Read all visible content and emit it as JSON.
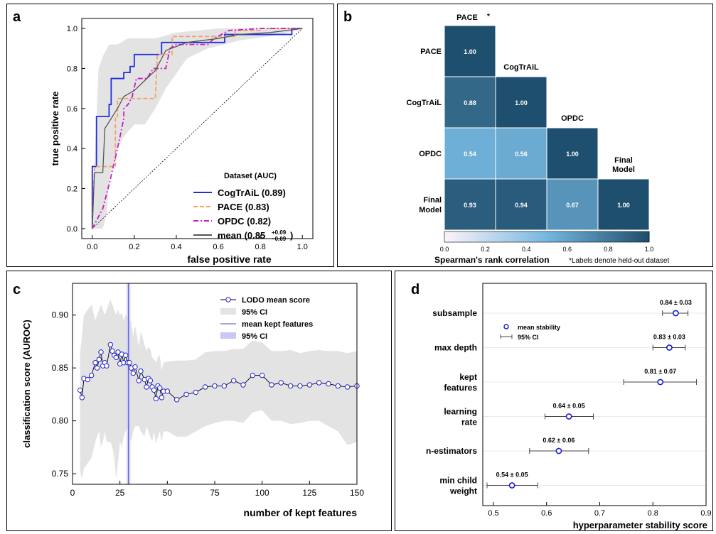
{
  "panel_a": {
    "letter": "a",
    "chart_data": {
      "type": "line",
      "xlabel": "false positive rate",
      "ylabel": "true positive rate",
      "xlim": [
        -0.05,
        1.05
      ],
      "ylim": [
        -0.05,
        1.05
      ],
      "xticks": [
        "0.0",
        "0.2",
        "0.4",
        "0.6",
        "0.8",
        "1.0"
      ],
      "yticks": [
        "0.0",
        "0.2",
        "0.4",
        "0.6",
        "0.8",
        "1.0"
      ],
      "legend_title": "Dataset (AUC)",
      "legend_position": "lower-right",
      "series": [
        {
          "name": "CogTrAiL (0.89)",
          "color": "#1f2fe0",
          "style": "solid",
          "points": [
            [
              0,
              0
            ],
            [
              0,
              0.31
            ],
            [
              0.02,
              0.31
            ],
            [
              0.02,
              0.56
            ],
            [
              0.08,
              0.56
            ],
            [
              0.08,
              0.62
            ],
            [
              0.09,
              0.62
            ],
            [
              0.09,
              0.75
            ],
            [
              0.15,
              0.75
            ],
            [
              0.15,
              0.78
            ],
            [
              0.18,
              0.78
            ],
            [
              0.18,
              0.81
            ],
            [
              0.2,
              0.81
            ],
            [
              0.2,
              0.87
            ],
            [
              0.33,
              0.87
            ],
            [
              0.33,
              0.93
            ],
            [
              0.63,
              0.93
            ],
            [
              0.63,
              0.97
            ],
            [
              0.95,
              0.97
            ],
            [
              0.95,
              1.0
            ],
            [
              1,
              1
            ]
          ]
        },
        {
          "name": "PACE (0.83)",
          "color": "#f5a06a",
          "style": "dashed",
          "points": [
            [
              0,
              0
            ],
            [
              0.01,
              0.31
            ],
            [
              0.11,
              0.31
            ],
            [
              0.11,
              0.56
            ],
            [
              0.12,
              0.56
            ],
            [
              0.12,
              0.65
            ],
            [
              0.3,
              0.65
            ],
            [
              0.31,
              0.87
            ],
            [
              0.38,
              0.87
            ],
            [
              0.38,
              0.96
            ],
            [
              0.68,
              0.96
            ],
            [
              0.68,
              0.99
            ],
            [
              0.8,
              0.99
            ],
            [
              0.8,
              1.0
            ],
            [
              1,
              1
            ]
          ]
        },
        {
          "name": "OPDC (0.82)",
          "color": "#c61cc6",
          "style": "dashdot",
          "points": [
            [
              0,
              0
            ],
            [
              0.05,
              0.1
            ],
            [
              0.08,
              0.22
            ],
            [
              0.12,
              0.4
            ],
            [
              0.15,
              0.55
            ],
            [
              0.15,
              0.6
            ],
            [
              0.17,
              0.62
            ],
            [
              0.19,
              0.66
            ],
            [
              0.21,
              0.75
            ],
            [
              0.26,
              0.75
            ],
            [
              0.29,
              0.8
            ],
            [
              0.35,
              0.8
            ],
            [
              0.37,
              0.9
            ],
            [
              0.4,
              0.92
            ],
            [
              0.55,
              0.92
            ],
            [
              0.58,
              0.95
            ],
            [
              0.65,
              0.99
            ],
            [
              0.8,
              1.0
            ],
            [
              1,
              1
            ]
          ]
        },
        {
          "name": "mean (0.85",
          "color": "#555555",
          "style": "solid",
          "points": [
            [
              0,
              0
            ],
            [
              0.01,
              0.28
            ],
            [
              0.05,
              0.28
            ],
            [
              0.06,
              0.5
            ],
            [
              0.09,
              0.55
            ],
            [
              0.12,
              0.6
            ],
            [
              0.15,
              0.66
            ],
            [
              0.2,
              0.69
            ],
            [
              0.25,
              0.74
            ],
            [
              0.3,
              0.79
            ],
            [
              0.35,
              0.89
            ],
            [
              0.45,
              0.93
            ],
            [
              0.6,
              0.95
            ],
            [
              0.7,
              0.97
            ],
            [
              0.85,
              0.98
            ],
            [
              1,
              1
            ]
          ]
        }
      ],
      "mean_ci_upper": "+0.09",
      "mean_ci_lower": "−0.09",
      "mean_label_close": ")",
      "band_upper": [
        [
          0,
          0.08
        ],
        [
          0.03,
          0.8
        ],
        [
          0.05,
          0.86
        ],
        [
          0.08,
          0.92
        ],
        [
          0.12,
          0.92
        ],
        [
          0.17,
          0.95
        ],
        [
          0.2,
          0.95
        ],
        [
          0.3,
          0.95
        ],
        [
          0.4,
          0.98
        ],
        [
          0.6,
          1.0
        ],
        [
          1,
          1
        ]
      ],
      "band_lower": [
        [
          0,
          0
        ],
        [
          0.03,
          0
        ],
        [
          0.05,
          0
        ],
        [
          0.07,
          0.08
        ],
        [
          0.08,
          0.25
        ],
        [
          0.12,
          0.4
        ],
        [
          0.15,
          0.46
        ],
        [
          0.2,
          0.52
        ],
        [
          0.25,
          0.52
        ],
        [
          0.3,
          0.6
        ],
        [
          0.35,
          0.7
        ],
        [
          0.45,
          0.85
        ],
        [
          0.55,
          0.9
        ],
        [
          0.7,
          0.94
        ],
        [
          0.9,
          0.97
        ],
        [
          1,
          1
        ]
      ]
    }
  },
  "panel_b": {
    "letter": "b",
    "chart_data": {
      "type": "heatmap",
      "top_label": "PACE",
      "star": "*",
      "row_labels": [
        "PACE",
        "CogTrAiL",
        "OPDC",
        "Final\nModel"
      ],
      "col_labels": [
        "PACE*",
        "CogTrAiL",
        "OPDC",
        "Final\nModel"
      ],
      "values": [
        [
          1.0
        ],
        [
          0.88,
          1.0
        ],
        [
          0.54,
          0.56,
          1.0
        ],
        [
          0.93,
          0.94,
          0.67,
          1.0
        ]
      ],
      "colorbar_ticks": [
        "0.0",
        "0.2",
        "0.4",
        "0.6",
        "0.8",
        "1.0"
      ],
      "colorbar_range": [
        0,
        1
      ],
      "colorbar_label": "Spearman's rank correlation",
      "footnote": "*Labels denote held-out dataset",
      "colors": {
        "low": "#fcf2fb",
        "mid": "#75b7e0",
        "high": "#1f4f6e"
      }
    }
  },
  "panel_c": {
    "letter": "c",
    "chart_data": {
      "type": "line",
      "xlabel": "number of kept features",
      "ylabel": "classification  score (AUROC)",
      "xlim": [
        0,
        150
      ],
      "ylim": [
        0.74,
        0.93
      ],
      "xticks": [
        "0",
        "25",
        "50",
        "75",
        "100",
        "125",
        "150"
      ],
      "yticks": [
        "0.75",
        "0.80",
        "0.85",
        "0.90"
      ],
      "legend": [
        "LODO mean score",
        "95% CI",
        "mean kept features",
        "95% CI"
      ],
      "legend_position": "top-right",
      "mean_kept_features": 29.5,
      "mean_kept_ci": [
        28.5,
        30.5
      ],
      "x": [
        4,
        5,
        6,
        8,
        10,
        12,
        13,
        14,
        15,
        16,
        17,
        18,
        20,
        21,
        22,
        23,
        24,
        25,
        26,
        27,
        28,
        29,
        30,
        31,
        32,
        33,
        35,
        36,
        38,
        39,
        40,
        41,
        42,
        43,
        44,
        45,
        46,
        47,
        48,
        50,
        55,
        60,
        65,
        70,
        75,
        80,
        85,
        90,
        95,
        100,
        105,
        110,
        115,
        120,
        125,
        130,
        135,
        140,
        145,
        150
      ],
      "y": [
        0.829,
        0.822,
        0.84,
        0.839,
        0.843,
        0.855,
        0.85,
        0.858,
        0.865,
        0.852,
        0.855,
        0.852,
        0.872,
        0.866,
        0.862,
        0.86,
        0.865,
        0.854,
        0.863,
        0.855,
        0.862,
        0.855,
        0.855,
        0.85,
        0.845,
        0.851,
        0.838,
        0.847,
        0.839,
        0.832,
        0.84,
        0.838,
        0.832,
        0.829,
        0.821,
        0.833,
        0.831,
        0.822,
        0.828,
        0.828,
        0.82,
        0.825,
        0.827,
        0.832,
        0.833,
        0.833,
        0.838,
        0.834,
        0.843,
        0.843,
        0.834,
        0.836,
        0.833,
        0.833,
        0.834,
        0.836,
        0.835,
        0.833,
        0.832,
        0.833
      ],
      "ci_upper": [
        0.865,
        0.88,
        0.9,
        0.905,
        0.91,
        0.895,
        0.9,
        0.905,
        0.91,
        0.905,
        0.9,
        0.905,
        0.915,
        0.91,
        0.905,
        0.9,
        0.905,
        0.9,
        0.902,
        0.895,
        0.9,
        0.898,
        0.897,
        0.893,
        0.88,
        0.89,
        0.87,
        0.885,
        0.872,
        0.866,
        0.87,
        0.868,
        0.86,
        0.858,
        0.855,
        0.86,
        0.862,
        0.848,
        0.855,
        0.856,
        0.857,
        0.857,
        0.858,
        0.865,
        0.866,
        0.866,
        0.868,
        0.868,
        0.876,
        0.874,
        0.866,
        0.866,
        0.867,
        0.864,
        0.866,
        0.867,
        0.866,
        0.866,
        0.864,
        0.866
      ],
      "ci_lower": [
        0.752,
        0.745,
        0.755,
        0.76,
        0.765,
        0.78,
        0.785,
        0.79,
        0.775,
        0.78,
        0.79,
        0.78,
        0.78,
        0.775,
        0.765,
        0.745,
        0.76,
        0.78,
        0.775,
        0.785,
        0.79,
        0.795,
        0.785,
        0.78,
        0.79,
        0.795,
        0.795,
        0.79,
        0.785,
        0.795,
        0.79,
        0.785,
        0.78,
        0.79,
        0.778,
        0.785,
        0.79,
        0.78,
        0.79,
        0.79,
        0.785,
        0.785,
        0.79,
        0.795,
        0.798,
        0.8,
        0.8,
        0.798,
        0.808,
        0.81,
        0.8,
        0.8,
        0.797,
        0.798,
        0.8,
        0.8,
        0.795,
        0.79,
        0.777,
        0.78
      ]
    }
  },
  "panel_d": {
    "letter": "d",
    "chart_data": {
      "type": "scatter",
      "xlabel": "hyperparameter stability score",
      "xlim": [
        0.48,
        0.9
      ],
      "xticks": [
        "0.5",
        "0.6",
        "0.7",
        "0.8",
        "0.9"
      ],
      "legend": [
        "mean stability",
        "95% CI"
      ],
      "legend_position": "top-left",
      "categories": [
        "subsample",
        "max depth",
        "kept\nfeatures",
        "learning\nrate",
        "n-estimators",
        "min child\nweight"
      ],
      "means": [
        0.843,
        0.831,
        0.814,
        0.642,
        0.623,
        0.535
      ],
      "ci_low": [
        0.818,
        0.8,
        0.745,
        0.597,
        0.568,
        0.488
      ],
      "ci_high": [
        0.866,
        0.861,
        0.882,
        0.688,
        0.679,
        0.583
      ],
      "value_labels": [
        "0.84 ± 0.03",
        "0.83 ± 0.03",
        "0.81 ± 0.07",
        "0.64 ± 0.05",
        "0.62 ± 0.06",
        "0.54 ± 0.05"
      ]
    }
  }
}
